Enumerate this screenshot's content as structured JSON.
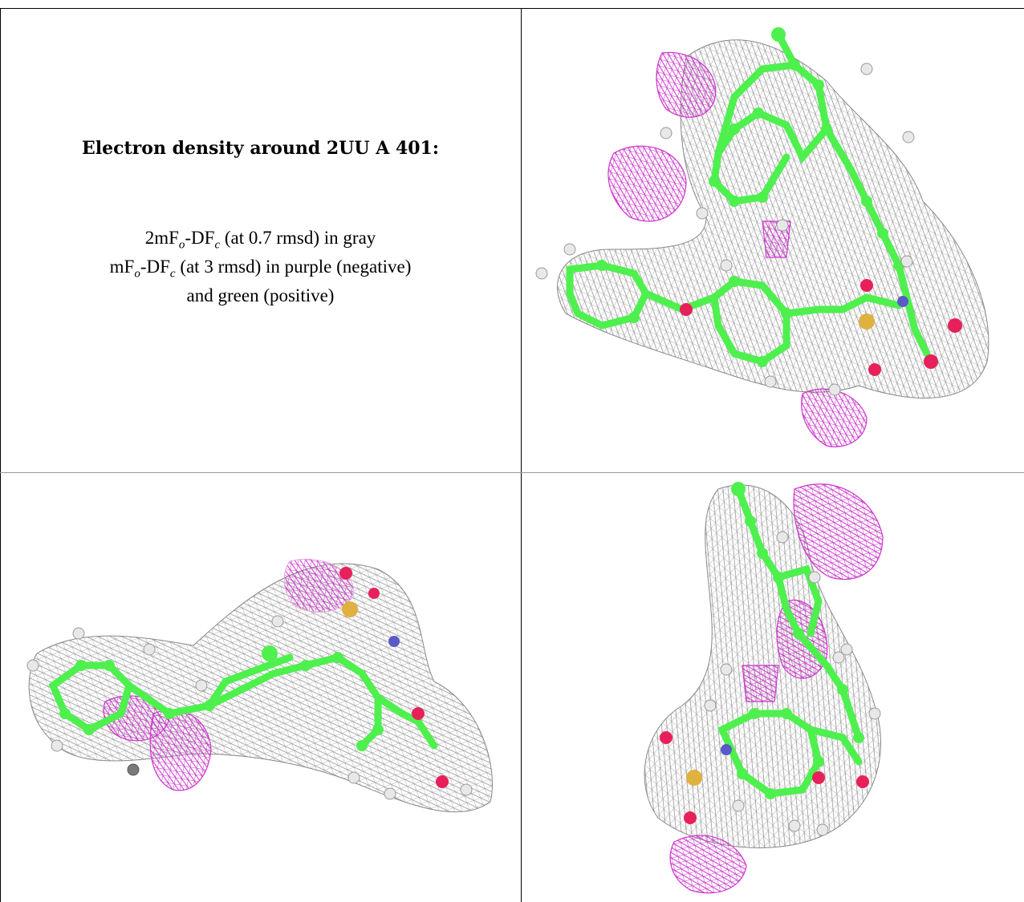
{
  "caption": {
    "title": "Electron density around 2UU A 401:",
    "line1_pre": "2mF",
    "line1_sub1": "o",
    "line1_mid": "-DF",
    "line1_sub2": "c",
    "line1_post": " (at 0.7 rmsd) in gray",
    "line2_pre": "mF",
    "line2_sub1": "o",
    "line2_mid": "-DF",
    "line2_sub2": "c",
    "line2_post": " (at 3 rmsd) in purple (negative)",
    "line3": "and green (positive)"
  },
  "colors": {
    "gray_mesh": "#9a9a9a",
    "purple_mesh": "#cc33cc",
    "carbon": "#4ef04e",
    "hydrogen": "#e8e8e8",
    "oxygen": "#e8205a",
    "sulfur": "#e0b040",
    "nitrogen": "#5a5ac8"
  },
  "panels": [
    {
      "name": "view-top-right"
    },
    {
      "name": "view-bottom-left"
    },
    {
      "name": "view-bottom-right"
    }
  ]
}
